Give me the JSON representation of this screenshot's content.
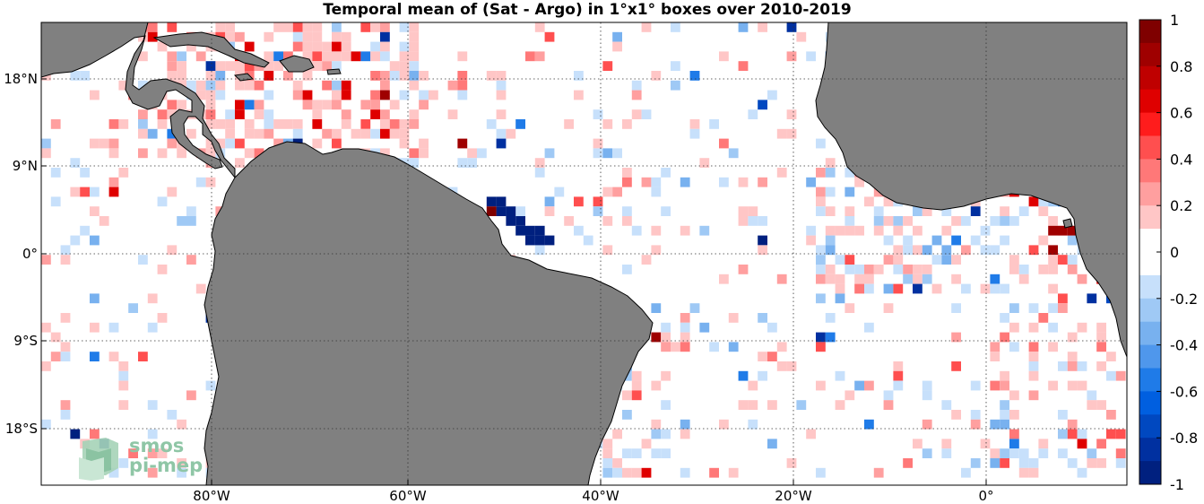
{
  "title": "Temporal mean of (Sat - Argo) in 1°x1° boxes over 2010-2019",
  "map": {
    "lon_labels": [
      "80°W",
      "60°W",
      "40°W",
      "20°W",
      "0°"
    ],
    "lat_labels": [
      "18°N",
      "9°N",
      "0°",
      "9°S",
      "18°S"
    ],
    "land_color": "#808080",
    "grid_style": "dotted"
  },
  "colorbar": {
    "ticks": [
      "1",
      "0.8",
      "0.6",
      "0.4",
      "0.2",
      "0",
      "-0.2",
      "-0.4",
      "-0.6",
      "-0.8",
      "-1"
    ],
    "colors": [
      "#7f0000",
      "#9f0000",
      "#bf0000",
      "#df0000",
      "#ff1c1c",
      "#ff4f4f",
      "#ff7878",
      "#ff9f9f",
      "#ffc6c6",
      "#ffffff",
      "#ffffff",
      "#c7e0fb",
      "#9fc9f5",
      "#78b1ef",
      "#4f97ec",
      "#1f7be8",
      "#005fe0",
      "#0048c0",
      "#0030a0",
      "#00207f"
    ]
  },
  "logo": {
    "line1": "smos",
    "line2": "pi-mep"
  }
}
